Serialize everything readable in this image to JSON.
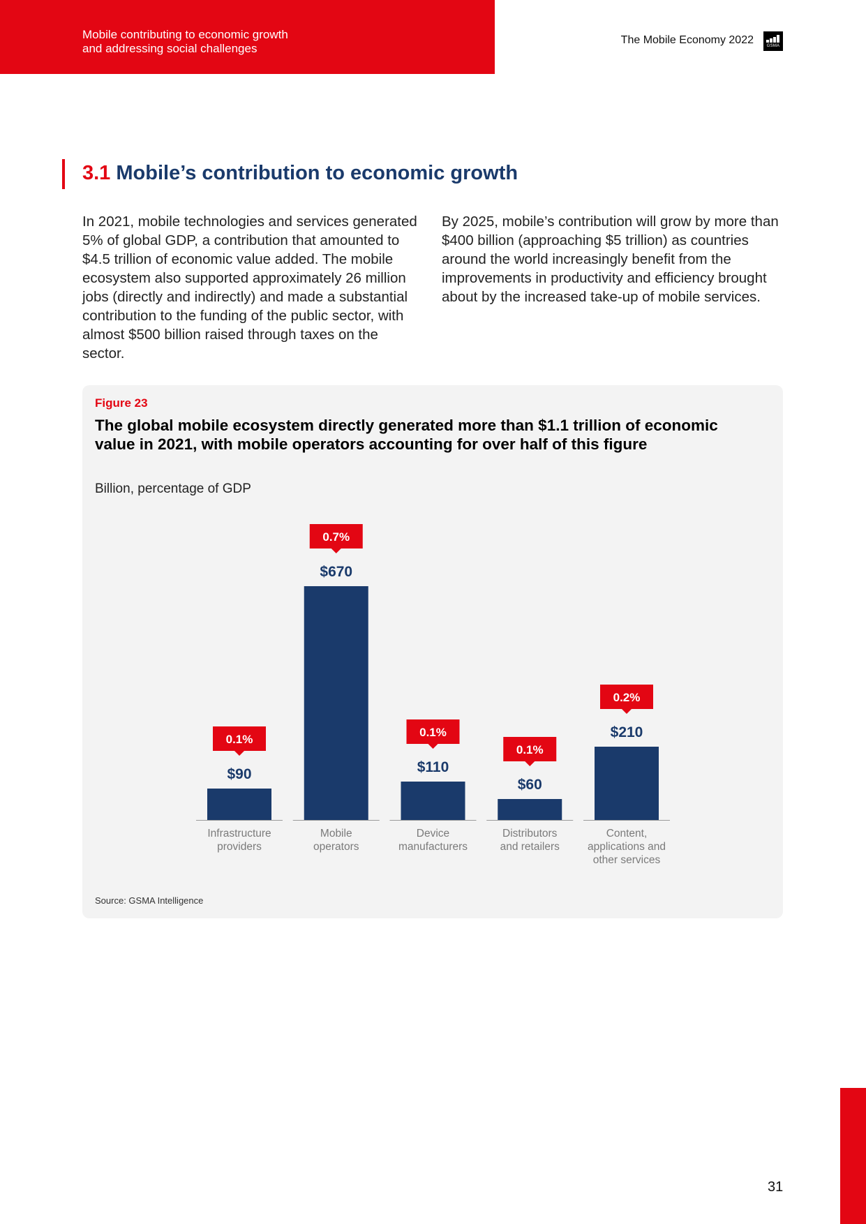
{
  "header": {
    "subtitle_lines": [
      "Mobile contributing to economic growth",
      "and addressing social challenges"
    ],
    "report_title": "The Mobile Economy 2022",
    "logo_text": "GSMA"
  },
  "section": {
    "number": "3.1",
    "title": "Mobile’s contribution to economic growth"
  },
  "body": {
    "col1": "In 2021, mobile technologies and services generated 5% of global GDP, a contribution that amounted to $4.5 trillion of economic value added. The mobile ecosystem also supported approximately 26 million jobs (directly and indirectly) and made a substantial contribution to the funding of the public sector, with almost $500 billion raised through taxes on the sector.",
    "col2": "By 2025, mobile’s contribution will grow by more than $400 billion (approaching $5 trillion) as countries around the world increasingly benefit from the improvements in productivity and efficiency brought about by the increased take-up of mobile services."
  },
  "figure": {
    "label": "Figure 23",
    "title": "The global mobile ecosystem directly generated more than $1.1 trillion of economic value in 2021, with mobile operators accounting for over half of this figure",
    "unit": "Billion, percentage of GDP",
    "source": "Source: GSMA Intelligence"
  },
  "chart_data": {
    "type": "bar",
    "categories": [
      [
        "Infrastructure",
        "providers"
      ],
      [
        "Mobile",
        "operators"
      ],
      [
        "Device",
        "manufacturers"
      ],
      [
        "Distributors",
        "and retailers"
      ],
      [
        "Content,",
        "applications and",
        "other services"
      ]
    ],
    "values": [
      90,
      670,
      110,
      60,
      210
    ],
    "value_labels": [
      "$90",
      "$670",
      "$110",
      "$60",
      "$210"
    ],
    "gdp_share_labels": [
      "0.1%",
      "0.7%",
      "0.1%",
      "0.1%",
      "0.2%"
    ],
    "ylim": [
      0,
      670
    ],
    "bar_color": "#1a3a6b",
    "callout_color": "#e30613",
    "grid": false
  },
  "page_number": "31",
  "colors": {
    "brand_red": "#e30613",
    "navy": "#1a3a6b"
  }
}
